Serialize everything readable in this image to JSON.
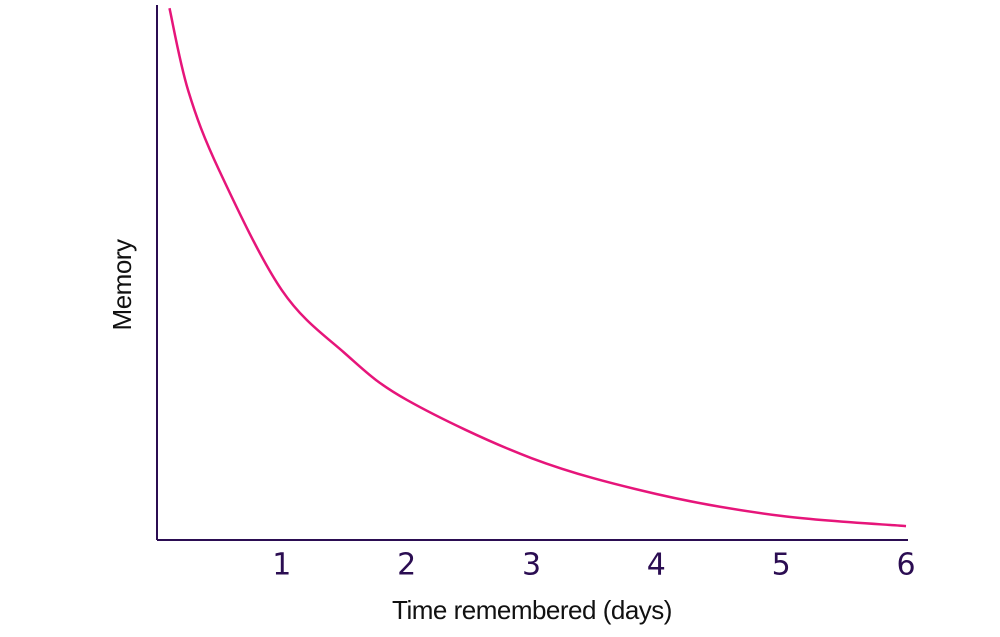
{
  "chart_data": {
    "type": "line",
    "x_label": "Time remembered (days)",
    "y_label": "Memory",
    "x": [
      0.1,
      0.25,
      0.5,
      1,
      1.5,
      2,
      3,
      4,
      5,
      6
    ],
    "series": [
      {
        "color": "#e6157a",
        "values": [
          99.4,
          84,
          69,
          46.7,
          35,
          26.2,
          15.3,
          8.6,
          4.5,
          2.6
        ]
      }
    ],
    "xlim": [
      0,
      6
    ],
    "xticks": [
      1,
      2,
      3,
      4,
      5,
      6
    ],
    "ylim": [
      0,
      100
    ],
    "grid": false
  }
}
